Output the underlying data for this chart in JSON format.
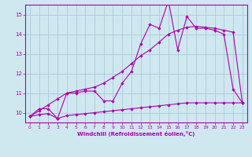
{
  "xlabel": "Windchill (Refroidissement éolien,°C)",
  "bg_color": "#cfe8f0",
  "grid_color": "#b0ccdd",
  "line_color": "#aa00aa",
  "x_data": [
    0,
    1,
    2,
    3,
    4,
    5,
    6,
    7,
    8,
    9,
    10,
    11,
    12,
    13,
    14,
    15,
    16,
    17,
    18,
    19,
    20,
    21,
    22,
    23
  ],
  "y_jagged": [
    9.8,
    10.2,
    10.2,
    9.7,
    11.0,
    11.0,
    11.1,
    11.1,
    10.6,
    10.6,
    11.5,
    12.1,
    13.5,
    14.5,
    14.3,
    15.7,
    13.2,
    14.9,
    14.3,
    14.3,
    14.2,
    14.0,
    11.2,
    10.5
  ],
  "y_smooth_upper": [
    9.8,
    10.1,
    10.4,
    10.7,
    11.0,
    11.1,
    11.2,
    11.3,
    11.5,
    11.8,
    12.1,
    12.5,
    12.9,
    13.2,
    13.6,
    14.0,
    14.2,
    14.35,
    14.4,
    14.35,
    14.3,
    14.2,
    14.1,
    10.5
  ],
  "y_smooth_lower": [
    9.8,
    9.9,
    9.95,
    9.7,
    9.85,
    9.9,
    9.95,
    10.0,
    10.05,
    10.1,
    10.15,
    10.2,
    10.25,
    10.3,
    10.35,
    10.4,
    10.45,
    10.5,
    10.5,
    10.5,
    10.5,
    10.5,
    10.5,
    10.5
  ],
  "ylim": [
    9.5,
    15.5
  ],
  "xlim": [
    -0.5,
    23.5
  ],
  "yticks": [
    10,
    11,
    12,
    13,
    14,
    15
  ],
  "xticks": [
    0,
    1,
    2,
    3,
    4,
    5,
    6,
    7,
    8,
    9,
    10,
    11,
    12,
    13,
    14,
    15,
    16,
    17,
    18,
    19,
    20,
    21,
    22,
    23
  ]
}
